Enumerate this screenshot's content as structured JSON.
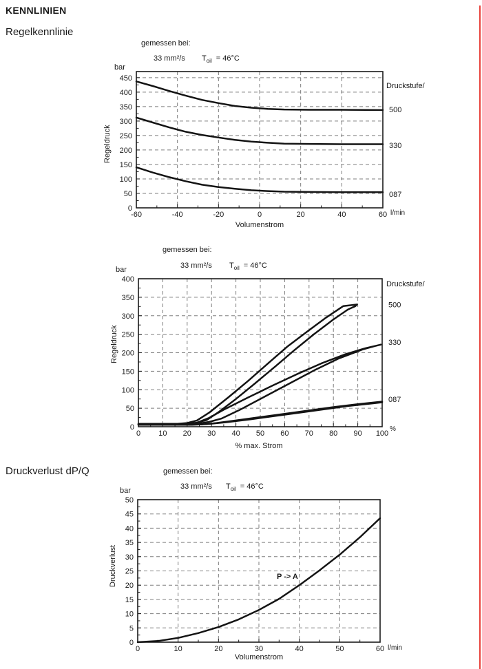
{
  "page": {
    "title": "KENNLINIEN",
    "section1": "Regelkennlinie",
    "section2": "Druckverlust dP/Q",
    "edge_marker_color": "#e8403a",
    "curve_color": "#141414",
    "grid_color": "#7d7d7d"
  },
  "chart_data": [
    {
      "type": "line",
      "header": {
        "measured": "gemessen bei:",
        "viscosity": "33 mm²/s",
        "t": "T",
        "t_sub": "oil",
        "t_eq": "= 46°C"
      },
      "y_unit": "bar",
      "x_unit": "l/min",
      "ylabel": "Regeldruck",
      "xlabel": "Volumenstrom",
      "legend_title": "Druckstufe/",
      "xlim": [
        -60,
        60
      ],
      "ylim": [
        0,
        471
      ],
      "xticks": [
        -60,
        -40,
        -20,
        0,
        20,
        40,
        60
      ],
      "yticks": [
        0,
        50,
        100,
        150,
        200,
        250,
        300,
        350,
        400,
        450
      ],
      "x_minor": 10,
      "y_minor": 25,
      "grid": true,
      "legend_position": "right",
      "series": [
        {
          "name": "500",
          "label_y": 340,
          "points": [
            [
              -60,
              437
            ],
            [
              -52,
              421
            ],
            [
              -44,
              404
            ],
            [
              -36,
              388
            ],
            [
              -28,
              373
            ],
            [
              -20,
              362
            ],
            [
              -12,
              352
            ],
            [
              -4,
              346
            ],
            [
              4,
              342
            ],
            [
              12,
              340
            ],
            [
              24,
              339
            ],
            [
              40,
              339
            ],
            [
              60,
              338
            ]
          ]
        },
        {
          "name": "330",
          "label_y": 217,
          "points": [
            [
              -60,
              312
            ],
            [
              -52,
              295
            ],
            [
              -44,
              278
            ],
            [
              -36,
              263
            ],
            [
              -28,
              252
            ],
            [
              -20,
              243
            ],
            [
              -12,
              235
            ],
            [
              -4,
              229
            ],
            [
              4,
              225
            ],
            [
              12,
              222
            ],
            [
              24,
              221
            ],
            [
              40,
              220
            ],
            [
              60,
              220
            ]
          ]
        },
        {
          "name": "087",
          "label_y": 48,
          "points": [
            [
              -60,
              140
            ],
            [
              -52,
              122
            ],
            [
              -44,
              106
            ],
            [
              -36,
              92
            ],
            [
              -28,
              80
            ],
            [
              -20,
              72
            ],
            [
              -12,
              66
            ],
            [
              -4,
              61
            ],
            [
              4,
              58
            ],
            [
              12,
              56
            ],
            [
              24,
              55
            ],
            [
              40,
              54
            ],
            [
              60,
              54
            ]
          ]
        }
      ]
    },
    {
      "type": "line",
      "header": {
        "measured": "gemessen bei:",
        "viscosity": "33 mm²/s",
        "t": "T",
        "t_sub": "oil",
        "t_eq": "= 46°C"
      },
      "y_unit": "bar",
      "x_unit": "%",
      "ylabel": "Regeldruck",
      "xlabel": "% max. Strom",
      "legend_title": "Druckstufe/",
      "xlim": [
        0,
        100
      ],
      "ylim": [
        0,
        400
      ],
      "xticks": [
        0,
        10,
        20,
        30,
        40,
        50,
        60,
        70,
        80,
        90,
        100
      ],
      "yticks": [
        0,
        50,
        100,
        150,
        200,
        250,
        300,
        350,
        400
      ],
      "x_minor": 5,
      "y_minor": 25,
      "grid": true,
      "legend_position": "right",
      "series": [
        {
          "name": "500",
          "label_y": 330,
          "points": [
            [
              0,
              7
            ],
            [
              14,
              7
            ],
            [
              19,
              8
            ],
            [
              24,
              11
            ],
            [
              28,
              18
            ],
            [
              33,
              40
            ],
            [
              40,
              75
            ],
            [
              48,
              118
            ],
            [
              56,
              162
            ],
            [
              64,
              207
            ],
            [
              72,
              250
            ],
            [
              80,
              290
            ],
            [
              86,
              317
            ],
            [
              89,
              326
            ],
            [
              89.7,
              330.5
            ],
            [
              84,
              326
            ],
            [
              77,
              295
            ],
            [
              69,
              256
            ],
            [
              61,
              216
            ],
            [
              53,
              170
            ],
            [
              45,
              124
            ],
            [
              37,
              80
            ],
            [
              29,
              38
            ],
            [
              24,
              17
            ],
            [
              20,
              10
            ],
            [
              16,
              8
            ],
            [
              0,
              8
            ]
          ]
        },
        {
          "name": "330",
          "label_y": 229,
          "points": [
            [
              0,
              6
            ],
            [
              19,
              6
            ],
            [
              24,
              8
            ],
            [
              29,
              13
            ],
            [
              34,
              22
            ],
            [
              42,
              47
            ],
            [
              52,
              82
            ],
            [
              62,
              117
            ],
            [
              72,
              152
            ],
            [
              82,
              184
            ],
            [
              92,
              209
            ],
            [
              97,
              218
            ],
            [
              99.5,
              222
            ],
            [
              93,
              212
            ],
            [
              85,
              196
            ],
            [
              75,
              171
            ],
            [
              65,
              142
            ],
            [
              55,
              111
            ],
            [
              45,
              79
            ],
            [
              35,
              46
            ],
            [
              29,
              24
            ],
            [
              24,
              11
            ],
            [
              21,
              7
            ],
            [
              0,
              7
            ]
          ]
        },
        {
          "name": "087",
          "label_y": 74,
          "points": [
            [
              0,
              5
            ],
            [
              22,
              5
            ],
            [
              28,
              7
            ],
            [
              36,
              12
            ],
            [
              46,
              20
            ],
            [
              56,
              29
            ],
            [
              66,
              38
            ],
            [
              76,
              47
            ],
            [
              86,
              56
            ],
            [
              96,
              63
            ],
            [
              100,
              66
            ],
            [
              100,
              68
            ],
            [
              90,
              61
            ],
            [
              80,
              53
            ],
            [
              70,
              44
            ],
            [
              60,
              35
            ],
            [
              50,
              26
            ],
            [
              40,
              17
            ],
            [
              32,
              10
            ],
            [
              26,
              6
            ],
            [
              0,
              6
            ]
          ]
        }
      ]
    },
    {
      "type": "line",
      "header": {
        "measured": "gemessen bei:",
        "viscosity": "33 mm²/s",
        "t": "T",
        "t_sub": "oil",
        "t_eq": "= 46°C"
      },
      "y_unit": "bar",
      "x_unit": "l/min",
      "ylabel": "Druckverlust",
      "xlabel": "Volumenstrom",
      "annotation": {
        "text": "P -> A",
        "x": 36,
        "y": 22
      },
      "xlim": [
        0,
        60
      ],
      "ylim": [
        0,
        50
      ],
      "xticks": [
        0,
        10,
        20,
        30,
        40,
        50,
        60
      ],
      "yticks": [
        0,
        5,
        10,
        15,
        20,
        25,
        30,
        35,
        40,
        45,
        50
      ],
      "x_minor": 5,
      "y_minor": 2.5,
      "grid": true,
      "series": [
        {
          "name": "P -> A",
          "points": [
            [
              0,
              0
            ],
            [
              5,
              0.4
            ],
            [
              10,
              1.5
            ],
            [
              15,
              3.2
            ],
            [
              20,
              5.3
            ],
            [
              25,
              8
            ],
            [
              30,
              11.3
            ],
            [
              35,
              15.2
            ],
            [
              40,
              20
            ],
            [
              45,
              25.2
            ],
            [
              50,
              30.7
            ],
            [
              55,
              36.8
            ],
            [
              60,
              43.5
            ]
          ]
        }
      ]
    }
  ]
}
